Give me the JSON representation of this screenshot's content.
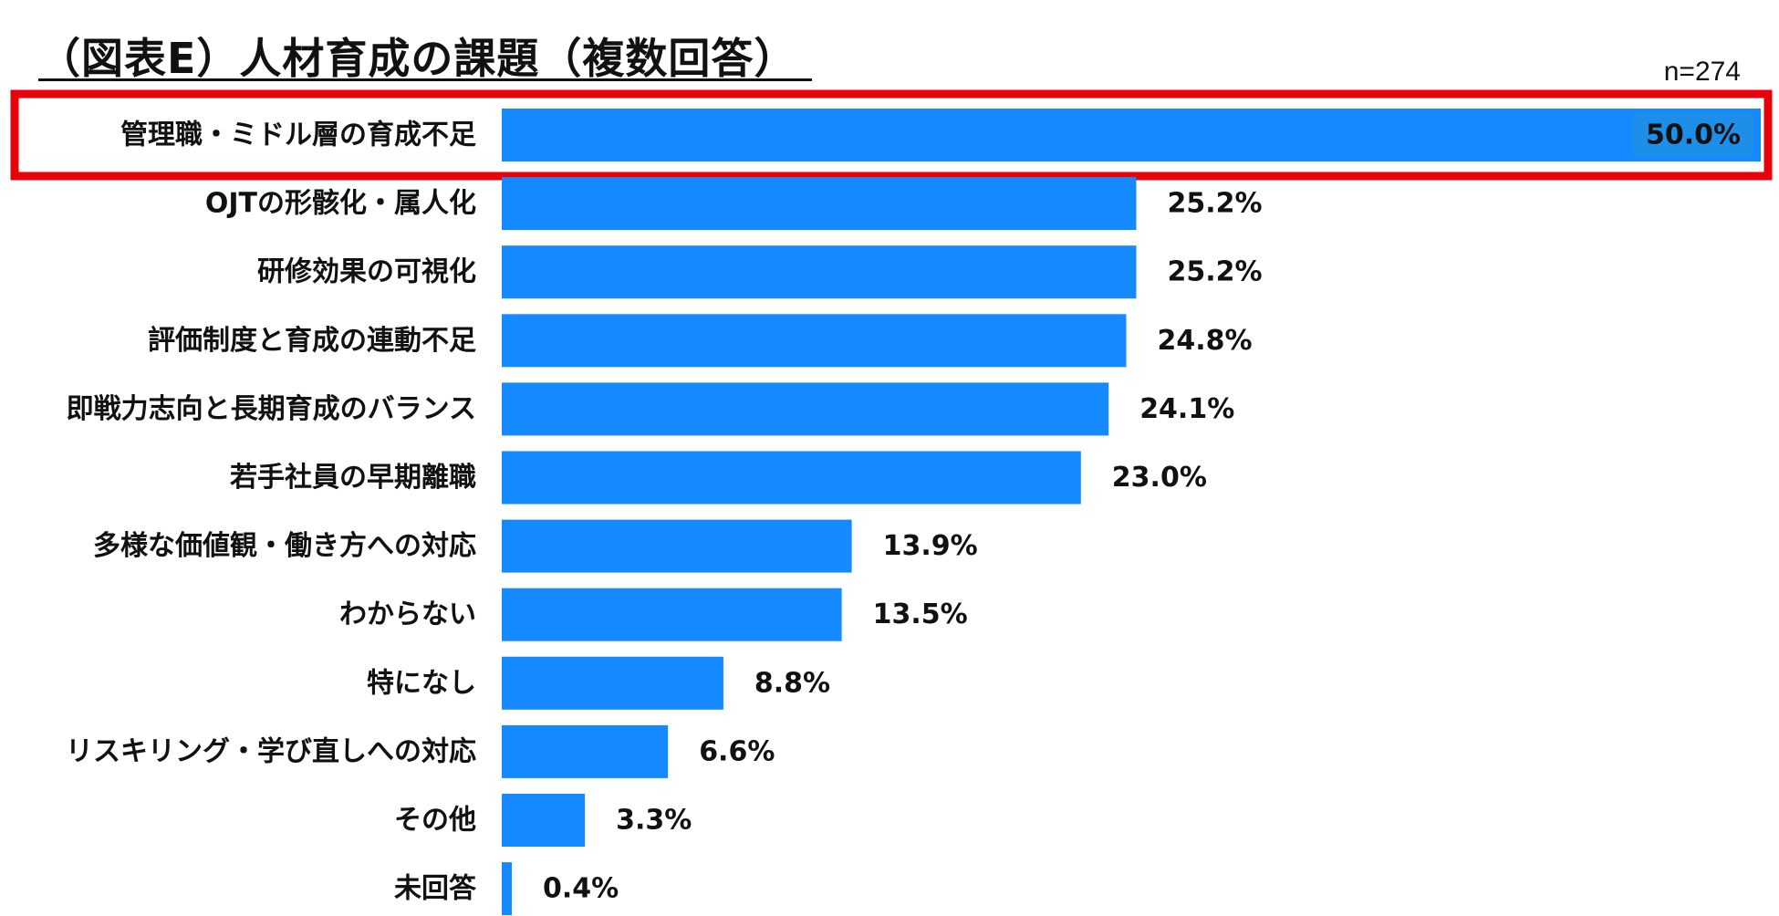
{
  "header": {
    "title": "（図表E）人材育成の課題（複数回答）",
    "sample_size": "n=274"
  },
  "colors": {
    "bar": "#1589FF",
    "highlight_border": "#E8000B",
    "value_badge": "#1E8FE8"
  },
  "chart_data": {
    "type": "bar",
    "orientation": "horizontal",
    "title": "（図表E）人材育成の課題（複数回答）",
    "xlabel": "",
    "ylabel": "",
    "xlim": [
      0,
      50
    ],
    "grid": false,
    "highlighted_category": "管理職・ミドル層の育成不足",
    "categories": [
      "管理職・ミドル層の育成不足",
      "OJTの形骸化・属人化",
      "研修効果の可視化",
      "評価制度と育成の連動不足",
      "即戦力志向と長期育成のバランス",
      "若手社員の早期離職",
      "多様な価値観・働き方への対応",
      "わからない",
      "特になし",
      "リスキリング・学び直しへの対応",
      "その他",
      "未回答"
    ],
    "values": [
      50.0,
      25.2,
      25.2,
      24.8,
      24.1,
      23.0,
      13.9,
      13.5,
      8.8,
      6.6,
      3.3,
      0.4
    ],
    "value_labels": [
      "50.0%",
      "25.2%",
      "25.2%",
      "24.8%",
      "24.1%",
      "23.0%",
      "13.9%",
      "13.5%",
      "8.8%",
      "6.6%",
      "3.3%",
      "0.4%"
    ]
  }
}
